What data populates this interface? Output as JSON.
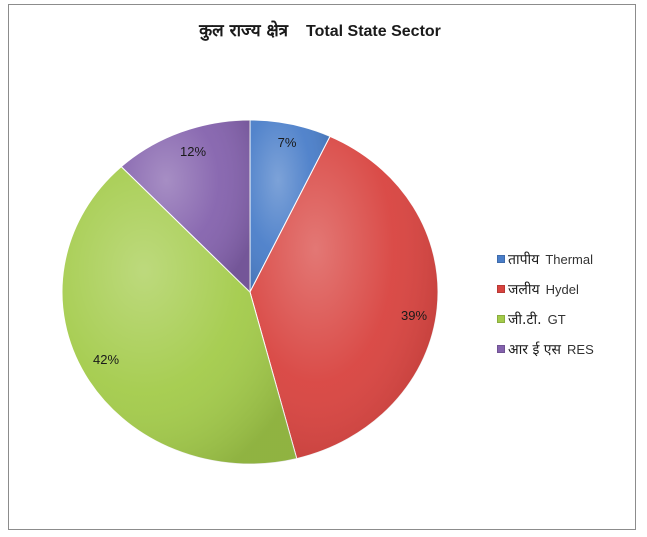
{
  "chart_data": {
    "type": "pie",
    "title_hindi": "कुल राज्य क्षेत्र",
    "title_english": "Total State Sector",
    "categories": [
      {
        "label_hindi": "तापीय",
        "label_english": "Thermal",
        "percent_label": "7%",
        "value": 7,
        "color": "#4a7ec9"
      },
      {
        "label_hindi": "जलीय",
        "label_english": "Hydel",
        "percent_label": "39%",
        "value": 39,
        "color": "#d8433f"
      },
      {
        "label_hindi": "जी.टी.",
        "label_english": "GT",
        "percent_label": "42%",
        "value": 42,
        "color": "#a3cb4a"
      },
      {
        "label_hindi": "आर ई एस",
        "label_english": "RES",
        "percent_label": "12%",
        "value": 12,
        "color": "#8462ad"
      }
    ],
    "legend_position": "right"
  }
}
